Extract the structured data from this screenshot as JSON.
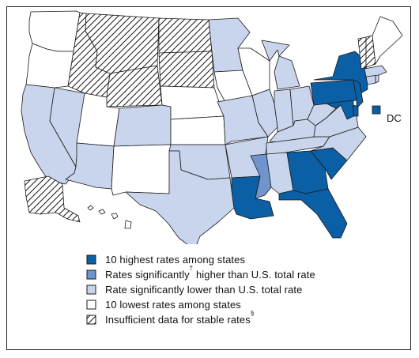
{
  "colors": {
    "highest": "#0b5fa5",
    "significantly_higher": "#6f95cc",
    "significantly_lower": "#c9d5ec",
    "lowest": "#ffffff",
    "outline": "#1a1a1a"
  },
  "dc_label": "DC",
  "legend": [
    {
      "key": "highest",
      "text": "10 highest rates among states",
      "sup": "",
      "pattern": "solid-dark"
    },
    {
      "key": "significantly_higher",
      "text": "Rates significantly",
      "sup": "†",
      "tail": " higher than U.S. total rate",
      "pattern": "solid-medium"
    },
    {
      "key": "significantly_lower",
      "text": "Rate significantly lower than U.S. total rate",
      "sup": "",
      "pattern": "solid-light"
    },
    {
      "key": "lowest",
      "text": "10 lowest rates among states",
      "sup": "",
      "pattern": "white"
    },
    {
      "key": "insufficient",
      "text": "Insufficient data for stable rates",
      "sup": "§",
      "pattern": "hatched"
    }
  ],
  "states": {
    "WA": "lowest",
    "OR": "lowest",
    "CA": "significantly_lower",
    "NV": "significantly_lower",
    "ID": "insufficient",
    "MT": "insufficient",
    "WY": "insufficient",
    "UT": "lowest",
    "AZ": "significantly_lower",
    "CO": "significantly_lower",
    "NM": "lowest",
    "ND": "insufficient",
    "SD": "insufficient",
    "NE": "lowest",
    "KS": "lowest",
    "OK": "significantly_lower",
    "TX": "significantly_lower",
    "MN": "significantly_lower",
    "IA": "lowest",
    "MO": "significantly_lower",
    "AR": "significantly_lower",
    "LA": "highest",
    "WI": "lowest",
    "IL": "significantly_lower",
    "MI": "significantly_lower",
    "IN": "significantly_lower",
    "OH": "significantly_lower",
    "KY": "significantly_lower",
    "TN": "significantly_lower",
    "MS": "significantly_higher",
    "AL": "significantly_lower",
    "GA": "highest",
    "FL": "highest",
    "SC": "highest",
    "NC": "significantly_lower",
    "VA": "significantly_lower",
    "WV": "significantly_lower",
    "PA": "highest",
    "NY": "highest",
    "NJ": "highest",
    "DE": "highest",
    "MD": "highest",
    "CT": "significantly_lower",
    "RI": "significantly_lower",
    "MA": "significantly_lower",
    "VT": "insufficient",
    "NH": "insufficient",
    "ME": "lowest",
    "AK": "insufficient",
    "HI": "lowest",
    "DC": "highest"
  }
}
